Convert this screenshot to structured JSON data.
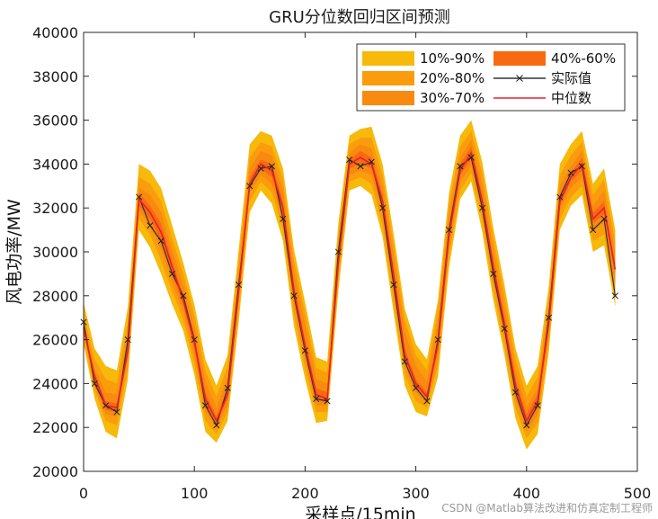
{
  "chart_data": {
    "type": "area",
    "title": "GRU分位数回归区间预测",
    "xlabel": "采样点/15min",
    "ylabel": "风电功率/MW",
    "xlim": [
      0,
      500
    ],
    "ylim": [
      20000,
      40000
    ],
    "xticks": [
      0,
      100,
      200,
      300,
      400,
      500
    ],
    "yticks": [
      20000,
      22000,
      24000,
      26000,
      28000,
      30000,
      32000,
      34000,
      36000,
      38000,
      40000
    ],
    "grid": false,
    "legend_position": "top-right",
    "x": [
      0,
      10,
      20,
      30,
      40,
      50,
      60,
      70,
      80,
      90,
      100,
      110,
      120,
      130,
      140,
      150,
      160,
      170,
      180,
      190,
      200,
      210,
      220,
      230,
      240,
      250,
      260,
      270,
      280,
      290,
      300,
      310,
      320,
      330,
      340,
      350,
      360,
      370,
      380,
      390,
      400,
      410,
      420,
      430,
      440,
      450,
      460,
      470,
      480
    ],
    "series": [
      {
        "name": "实际值",
        "color": "#333333",
        "values": [
          26800,
          24000,
          23000,
          22700,
          26000,
          32500,
          31200,
          30500,
          29000,
          28000,
          26000,
          23000,
          22100,
          23800,
          28500,
          33000,
          33800,
          33900,
          31500,
          28000,
          25500,
          23300,
          23200,
          30000,
          34200,
          33900,
          34100,
          32000,
          28500,
          25000,
          23800,
          23200,
          26000,
          31000,
          33900,
          34300,
          32000,
          29000,
          26500,
          23600,
          22100,
          23000,
          27000,
          32500,
          33600,
          33900,
          31000,
          31500,
          28000
        ]
      },
      {
        "name": "中位数",
        "color": "#e8202a",
        "values": [
          26500,
          24300,
          23000,
          22900,
          25500,
          32400,
          31800,
          30900,
          29300,
          27800,
          25900,
          23300,
          22300,
          23500,
          28200,
          33100,
          34000,
          33700,
          32000,
          28200,
          25700,
          23500,
          23300,
          29500,
          34000,
          34300,
          34000,
          32300,
          28900,
          25300,
          24000,
          23400,
          25800,
          30800,
          33700,
          34500,
          32300,
          29300,
          26700,
          23900,
          22300,
          23200,
          26700,
          32300,
          33400,
          34000,
          31500,
          32000,
          29200
        ]
      }
    ],
    "bands": [
      {
        "name": "10%-90%",
        "color": "#f7b90a",
        "lower": [
          25800,
          23300,
          21800,
          21500,
          24200,
          31000,
          30200,
          29000,
          27600,
          26400,
          24400,
          21800,
          21300,
          22300,
          26800,
          31800,
          32800,
          32200,
          30500,
          26600,
          24200,
          22200,
          22300,
          28200,
          32800,
          33000,
          32600,
          30700,
          27200,
          23900,
          22700,
          22500,
          24300,
          29300,
          32400,
          33200,
          30900,
          27800,
          25300,
          22400,
          21000,
          21700,
          25400,
          31000,
          32100,
          32600,
          30000,
          30300,
          27500
        ],
        "upper": [
          27700,
          25600,
          24800,
          24600,
          27500,
          34000,
          33700,
          32900,
          31200,
          29500,
          27600,
          25100,
          23900,
          25300,
          30100,
          34900,
          35500,
          35300,
          33800,
          30100,
          27700,
          25200,
          25000,
          31300,
          35300,
          35600,
          35700,
          34000,
          30800,
          27400,
          25800,
          25100,
          27800,
          32700,
          35300,
          36000,
          34100,
          31100,
          28500,
          25600,
          23900,
          24800,
          28400,
          34000,
          34900,
          35500,
          33100,
          33800,
          31000
        ]
      },
      {
        "name": "20%-80%",
        "color": "#fa9c0c",
        "lower": [
          26100,
          23700,
          22300,
          22100,
          24700,
          31500,
          30800,
          29600,
          28200,
          26900,
          24900,
          22300,
          21700,
          22700,
          27300,
          32300,
          33200,
          32700,
          31000,
          27100,
          24700,
          22700,
          22700,
          28700,
          33200,
          33400,
          33100,
          31200,
          27700,
          24400,
          23200,
          22900,
          24800,
          29800,
          32800,
          33600,
          31400,
          28300,
          25700,
          22900,
          21500,
          22200,
          25800,
          31500,
          32500,
          33000,
          30500,
          30800,
          28000
        ],
        "upper": [
          27200,
          25100,
          24200,
          24000,
          26900,
          33400,
          33100,
          32300,
          30600,
          29000,
          27100,
          24600,
          23400,
          24800,
          29600,
          34300,
          35000,
          34800,
          33300,
          29600,
          27200,
          24700,
          24500,
          30800,
          34900,
          35200,
          35200,
          33500,
          30300,
          26900,
          25300,
          24600,
          27300,
          32200,
          34800,
          35500,
          33600,
          30600,
          28000,
          25100,
          23400,
          24300,
          27900,
          33500,
          34400,
          35000,
          32600,
          33300,
          30500
        ]
      },
      {
        "name": "30%-70%",
        "color": "#f98a10",
        "lower": [
          26300,
          23900,
          22600,
          22500,
          25100,
          31900,
          31200,
          30100,
          28600,
          27300,
          25300,
          22700,
          22000,
          23000,
          27700,
          32700,
          33500,
          33100,
          31400,
          27600,
          25100,
          23000,
          23000,
          29000,
          33500,
          33700,
          33500,
          31700,
          28200,
          24800,
          23600,
          23100,
          25200,
          30200,
          33200,
          33900,
          31800,
          28700,
          26100,
          23300,
          21800,
          22600,
          26200,
          31900,
          32900,
          33400,
          31000,
          31300,
          28500
        ],
        "upper": [
          26900,
          24700,
          23600,
          23500,
          26300,
          32900,
          32600,
          31800,
          30100,
          28500,
          26600,
          24100,
          22900,
          24300,
          29100,
          33800,
          34600,
          34400,
          32800,
          29100,
          26700,
          24200,
          24000,
          30300,
          34500,
          34900,
          34700,
          33000,
          29800,
          26400,
          24800,
          24100,
          26800,
          31700,
          34300,
          35100,
          33100,
          30100,
          27500,
          24600,
          22900,
          23800,
          27400,
          33000,
          33900,
          34600,
          32100,
          32800,
          30000
        ]
      },
      {
        "name": "40%-60%",
        "color": "#f86a12",
        "lower": [
          26400,
          24100,
          22800,
          22700,
          25300,
          32100,
          31500,
          30500,
          29000,
          27600,
          25600,
          23000,
          22200,
          23300,
          28000,
          32900,
          33800,
          33400,
          31700,
          27900,
          25400,
          23300,
          23100,
          29300,
          33800,
          34000,
          33800,
          32000,
          28600,
          25100,
          23800,
          23300,
          25500,
          30500,
          33500,
          34200,
          32100,
          29000,
          26400,
          23600,
          22100,
          22900,
          26500,
          32100,
          33200,
          33700,
          31300,
          31700,
          28900
        ],
        "upper": [
          26600,
          24500,
          23200,
          23100,
          25700,
          32700,
          32100,
          31300,
          29600,
          28000,
          26200,
          23600,
          22500,
          23800,
          28500,
          33400,
          34200,
          34000,
          32300,
          28500,
          26000,
          23800,
          23600,
          29800,
          34200,
          34600,
          34300,
          32600,
          29200,
          25600,
          24200,
          23600,
          26100,
          31000,
          34000,
          34800,
          32600,
          29600,
          27000,
          24200,
          22600,
          23500,
          27000,
          32600,
          33600,
          34300,
          31800,
          32300,
          29500
        ]
      }
    ],
    "legend": [
      "10%-90%",
      "20%-80%",
      "30%-70%",
      "40%-60%",
      "实际值",
      "中位数"
    ]
  },
  "watermark_text": "CSDN @Matlab算法改进和仿真定制工程师"
}
